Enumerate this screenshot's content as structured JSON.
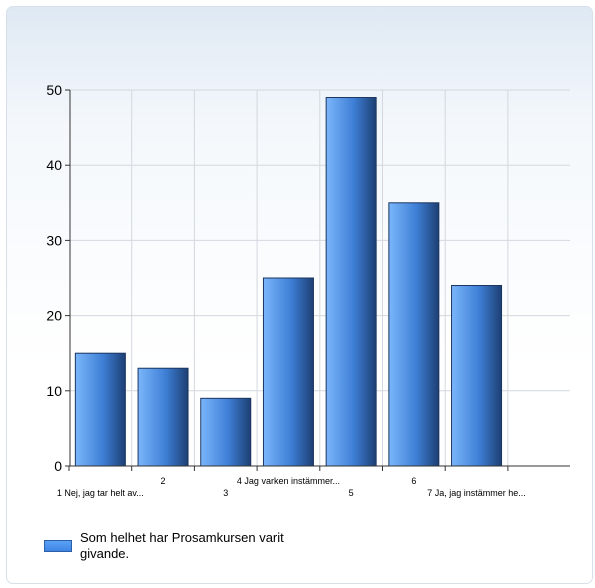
{
  "chart_data": {
    "type": "bar",
    "categories": [
      "1 Nej, jag tar helt av...",
      "2",
      "3",
      "4 Jag varken instämmer...",
      "5",
      "6",
      "7 Ja, jag instämmer he..."
    ],
    "series": [
      {
        "name": "Som helhet har Prosamkursen varit givande.",
        "values": [
          15,
          13,
          9,
          25,
          49,
          35,
          24
        ]
      }
    ],
    "yticks": [
      0,
      10,
      20,
      30,
      40,
      50
    ],
    "ylim": [
      0,
      50
    ],
    "grid": true,
    "legend_position": "bottom-left",
    "bar_color_light": "#6aaaf7",
    "bar_color_dark": "#1d3f73"
  }
}
